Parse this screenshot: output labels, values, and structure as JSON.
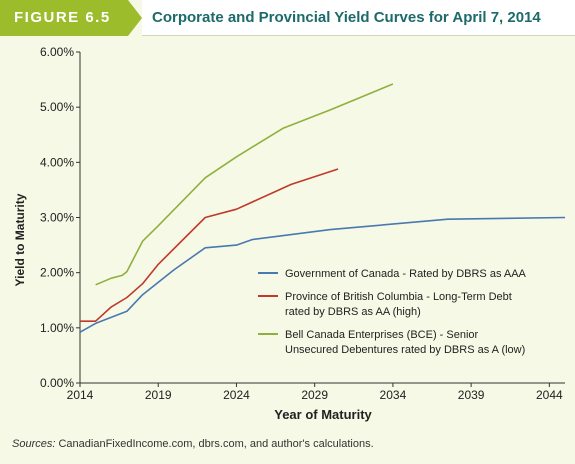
{
  "figure_label": "FIGURE 6.5",
  "title": "Corporate and Provincial Yield Curves for April 7, 2014",
  "sources_label": "Sources:",
  "sources_text": "CanadianFixedIncome.com, dbrs.com, and author's calculations.",
  "colors": {
    "gov": "#4a78b0",
    "bc": "#c0392b",
    "bce": "#8fb03e",
    "header_green": "#9cbc2c",
    "title_text": "#1c6b6a",
    "background": "#f6f9e6"
  },
  "chart_data": {
    "type": "line",
    "title": "Corporate and Provincial Yield Curves for April 7, 2014",
    "xlabel": "Year of Maturity",
    "ylabel": "Yield to Maturity",
    "xlim": [
      2014,
      2045
    ],
    "ylim": [
      0,
      6
    ],
    "xticks": [
      2014,
      2019,
      2024,
      2029,
      2034,
      2039,
      2044
    ],
    "xtick_labels": [
      "2014",
      "2019",
      "2024",
      "2029",
      "2034",
      "2039",
      "2044"
    ],
    "yticks": [
      0,
      1,
      2,
      3,
      4,
      5,
      6
    ],
    "ytick_labels": [
      "0.00%",
      "1.00%",
      "2.00%",
      "3.00%",
      "4.00%",
      "5.00%",
      "6.00%"
    ],
    "grid": false,
    "legend_position": "bottom-right",
    "series": [
      {
        "name": "Government of Canada - Rated by DBRS as AAA",
        "legend_lines": [
          "Government of Canada - Rated by DBRS as AAA"
        ],
        "color_key": "gov",
        "points": [
          [
            2014,
            0.92
          ],
          [
            2015,
            1.08
          ],
          [
            2017,
            1.3
          ],
          [
            2018,
            1.6
          ],
          [
            2020,
            2.05
          ],
          [
            2022,
            2.45
          ],
          [
            2024,
            2.5
          ],
          [
            2025,
            2.6
          ],
          [
            2030,
            2.78
          ],
          [
            2037.5,
            2.97
          ],
          [
            2045,
            3.0
          ]
        ]
      },
      {
        "name": "Province of British Columbia - Long-Term Debt rated by DBRS as AA (high)",
        "legend_lines": [
          "Province of British Columbia - Long-Term Debt",
          "rated by DBRS as AA (high)"
        ],
        "color_key": "bc",
        "points": [
          [
            2014,
            1.12
          ],
          [
            2015,
            1.12
          ],
          [
            2016,
            1.38
          ],
          [
            2017,
            1.55
          ],
          [
            2018,
            1.8
          ],
          [
            2019,
            2.15
          ],
          [
            2022,
            3.0
          ],
          [
            2024,
            3.15
          ],
          [
            2027.5,
            3.6
          ],
          [
            2030.5,
            3.88
          ]
        ]
      },
      {
        "name": "Bell Canada Enterprises (BCE) - Senior Unsecured Debentures rated by DBRS as A (low)",
        "legend_lines": [
          "Bell Canada Enterprises (BCE) - Senior",
          "Unsecured Debentures rated by DBRS as A (low)"
        ],
        "color_key": "bce",
        "points": [
          [
            2015,
            1.78
          ],
          [
            2016,
            1.9
          ],
          [
            2016.7,
            1.95
          ],
          [
            2017,
            2.02
          ],
          [
            2018,
            2.57
          ],
          [
            2019,
            2.85
          ],
          [
            2022,
            3.72
          ],
          [
            2024,
            4.1
          ],
          [
            2027,
            4.62
          ],
          [
            2030,
            4.95
          ],
          [
            2034,
            5.42
          ]
        ]
      }
    ]
  }
}
